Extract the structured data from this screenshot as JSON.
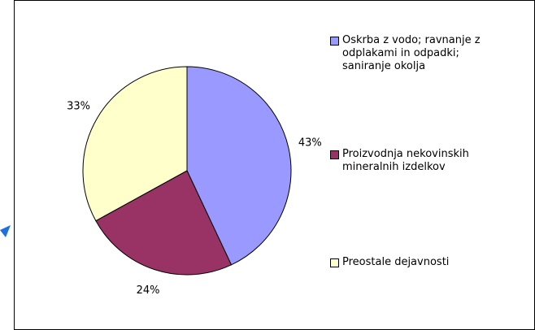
{
  "chart_data": {
    "type": "pie",
    "categories": [
      "Oskrba z vodo; ravnanje z odplakami in odpadki; saniranje okolja",
      "Proizvodnja nekovinskih mineralnih izdelkov",
      "Preostale dejavnosti"
    ],
    "values": [
      43,
      24,
      33
    ],
    "value_labels": [
      "43%",
      "24%",
      "33%"
    ],
    "colors": [
      "#9999ff",
      "#993366",
      "#ffffcc"
    ],
    "legend": "right"
  }
}
